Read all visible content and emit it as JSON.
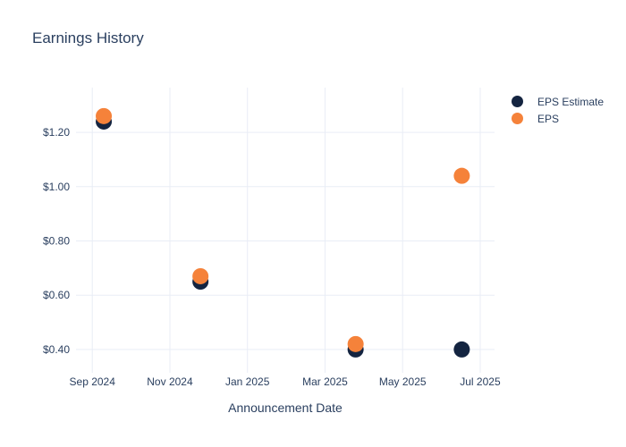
{
  "page": {
    "background_color": "#ffffff",
    "text_color": "#2A3F5F"
  },
  "chart_data": {
    "type": "scatter",
    "title": "Earnings History",
    "xlabel": "Announcement Date",
    "ylabel": "",
    "grid": true,
    "grid_color": "#E9EDF6",
    "marker_radius": 9,
    "legend_position": "top-right-outside",
    "x_ticks": [
      {
        "label": "Sep 2024",
        "month": 0
      },
      {
        "label": "Nov 2024",
        "month": 2
      },
      {
        "label": "Jan 2025",
        "month": 4
      },
      {
        "label": "Mar 2025",
        "month": 6
      },
      {
        "label": "May 2025",
        "month": 8
      },
      {
        "label": "Jul 2025",
        "month": 10
      }
    ],
    "y_ticks": [
      {
        "label": "$0.40",
        "value": 0.4
      },
      {
        "label": "$0.60",
        "value": 0.6
      },
      {
        "label": "$0.80",
        "value": 0.8
      },
      {
        "label": "$1.00",
        "value": 1.0
      },
      {
        "label": "$1.20",
        "value": 1.2
      }
    ],
    "x_range_months": [
      -0.42,
      10.37
    ],
    "y_range": [
      0.314,
      1.365
    ],
    "series": [
      {
        "name": "EPS Estimate",
        "color": "#142440",
        "points": [
          {
            "date": "2024-09-10",
            "value": 1.24
          },
          {
            "date": "2024-11-25",
            "value": 0.65
          },
          {
            "date": "2025-03-25",
            "value": 0.4
          },
          {
            "date": "2025-06-17",
            "value": 0.4
          }
        ]
      },
      {
        "name": "EPS",
        "color": "#F5823A",
        "points": [
          {
            "date": "2024-09-10",
            "value": 1.26
          },
          {
            "date": "2024-11-25",
            "value": 0.67
          },
          {
            "date": "2025-03-25",
            "value": 0.42
          },
          {
            "date": "2025-06-17",
            "value": 1.04
          }
        ]
      }
    ]
  }
}
